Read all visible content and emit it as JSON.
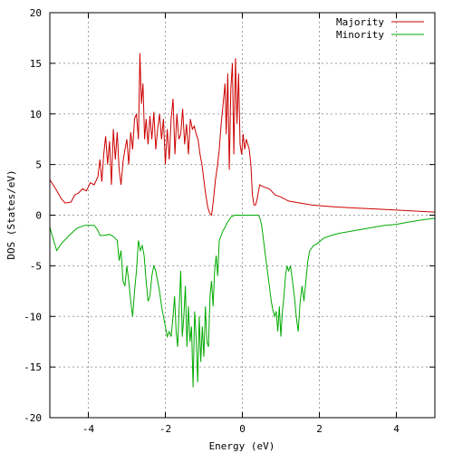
{
  "chart_data": {
    "type": "line",
    "xlabel": "Energy (eV)",
    "ylabel": "DOS (States/eV)",
    "xlim": [
      -5,
      5
    ],
    "ylim": [
      -20,
      20
    ],
    "xticks": [
      -4,
      -2,
      0,
      2,
      4
    ],
    "yticks": [
      -20,
      -15,
      -10,
      -5,
      0,
      5,
      10,
      15,
      20
    ],
    "grid": true,
    "legend_position": "top-right",
    "series": [
      {
        "name": "Majority",
        "color": "#cc0000",
        "points": [
          [
            -5.0,
            3.5
          ],
          [
            -4.85,
            2.6
          ],
          [
            -4.7,
            1.6
          ],
          [
            -4.6,
            1.2
          ],
          [
            -4.45,
            1.3
          ],
          [
            -4.35,
            2.0
          ],
          [
            -4.25,
            2.2
          ],
          [
            -4.15,
            2.6
          ],
          [
            -4.05,
            2.4
          ],
          [
            -3.95,
            3.2
          ],
          [
            -3.85,
            3.0
          ],
          [
            -3.75,
            3.8
          ],
          [
            -3.7,
            5.5
          ],
          [
            -3.65,
            3.3
          ],
          [
            -3.6,
            6.0
          ],
          [
            -3.55,
            7.8
          ],
          [
            -3.5,
            5.0
          ],
          [
            -3.45,
            7.3
          ],
          [
            -3.4,
            3.0
          ],
          [
            -3.35,
            8.5
          ],
          [
            -3.3,
            5.5
          ],
          [
            -3.25,
            8.2
          ],
          [
            -3.2,
            4.5
          ],
          [
            -3.15,
            3.0
          ],
          [
            -3.1,
            5.3
          ],
          [
            -3.05,
            6.5
          ],
          [
            -3.0,
            7.5
          ],
          [
            -2.95,
            5.0
          ],
          [
            -2.9,
            8.2
          ],
          [
            -2.85,
            6.5
          ],
          [
            -2.8,
            9.5
          ],
          [
            -2.75,
            10.0
          ],
          [
            -2.7,
            7.5
          ],
          [
            -2.66,
            16.0
          ],
          [
            -2.62,
            11.0
          ],
          [
            -2.58,
            13.0
          ],
          [
            -2.54,
            7.5
          ],
          [
            -2.5,
            9.5
          ],
          [
            -2.45,
            7.0
          ],
          [
            -2.4,
            9.8
          ],
          [
            -2.35,
            7.5
          ],
          [
            -2.3,
            10.2
          ],
          [
            -2.25,
            6.5
          ],
          [
            -2.2,
            8.5
          ],
          [
            -2.15,
            10.0
          ],
          [
            -2.1,
            7.5
          ],
          [
            -2.05,
            9.5
          ],
          [
            -2.0,
            5.0
          ],
          [
            -1.95,
            8.5
          ],
          [
            -1.9,
            5.5
          ],
          [
            -1.85,
            9.5
          ],
          [
            -1.8,
            11.5
          ],
          [
            -1.75,
            6.0
          ],
          [
            -1.7,
            10.0
          ],
          [
            -1.65,
            7.5
          ],
          [
            -1.6,
            8.0
          ],
          [
            -1.55,
            10.5
          ],
          [
            -1.5,
            7.0
          ],
          [
            -1.45,
            9.0
          ],
          [
            -1.4,
            6.0
          ],
          [
            -1.35,
            9.5
          ],
          [
            -1.3,
            8.5
          ],
          [
            -1.25,
            8.8
          ],
          [
            -1.2,
            8.0
          ],
          [
            -1.15,
            7.5
          ],
          [
            -1.1,
            6.0
          ],
          [
            -1.05,
            5.0
          ],
          [
            -1.0,
            3.5
          ],
          [
            -0.95,
            2.0
          ],
          [
            -0.9,
            0.8
          ],
          [
            -0.85,
            0.2
          ],
          [
            -0.8,
            0.0
          ],
          [
            -0.75,
            1.5
          ],
          [
            -0.7,
            3.5
          ],
          [
            -0.65,
            4.8
          ],
          [
            -0.6,
            6.5
          ],
          [
            -0.55,
            9.0
          ],
          [
            -0.5,
            11.0
          ],
          [
            -0.45,
            13.0
          ],
          [
            -0.42,
            8.0
          ],
          [
            -0.38,
            14.0
          ],
          [
            -0.34,
            4.5
          ],
          [
            -0.3,
            12.5
          ],
          [
            -0.26,
            15.0
          ],
          [
            -0.22,
            6.0
          ],
          [
            -0.18,
            15.5
          ],
          [
            -0.14,
            9.0
          ],
          [
            -0.1,
            14.0
          ],
          [
            -0.06,
            7.0
          ],
          [
            -0.02,
            6.0
          ],
          [
            0.02,
            8.0
          ],
          [
            0.06,
            6.5
          ],
          [
            0.1,
            7.5
          ],
          [
            0.14,
            7.0
          ],
          [
            0.18,
            6.5
          ],
          [
            0.22,
            5.0
          ],
          [
            0.26,
            2.0
          ],
          [
            0.3,
            1.0
          ],
          [
            0.34,
            1.0
          ],
          [
            0.38,
            1.5
          ],
          [
            0.45,
            3.0
          ],
          [
            0.55,
            2.8
          ],
          [
            0.7,
            2.6
          ],
          [
            0.85,
            2.0
          ],
          [
            1.0,
            1.8
          ],
          [
            1.2,
            1.4
          ],
          [
            1.5,
            1.2
          ],
          [
            1.8,
            1.0
          ],
          [
            2.1,
            0.9
          ],
          [
            2.5,
            0.8
          ],
          [
            3.0,
            0.7
          ],
          [
            3.5,
            0.6
          ],
          [
            4.0,
            0.5
          ],
          [
            4.5,
            0.4
          ],
          [
            5.0,
            0.3
          ]
        ]
      },
      {
        "name": "Minority",
        "color": "#00aa00",
        "points": [
          [
            -5.0,
            -1.2
          ],
          [
            -4.9,
            -2.5
          ],
          [
            -4.82,
            -3.5
          ],
          [
            -4.7,
            -2.8
          ],
          [
            -4.5,
            -2.0
          ],
          [
            -4.3,
            -1.3
          ],
          [
            -4.1,
            -1.0
          ],
          [
            -3.85,
            -1.0
          ],
          [
            -3.75,
            -1.5
          ],
          [
            -3.7,
            -2.0
          ],
          [
            -3.6,
            -2.0
          ],
          [
            -3.45,
            -1.9
          ],
          [
            -3.35,
            -2.1
          ],
          [
            -3.25,
            -2.5
          ],
          [
            -3.2,
            -4.5
          ],
          [
            -3.15,
            -3.5
          ],
          [
            -3.1,
            -6.5
          ],
          [
            -3.05,
            -7.0
          ],
          [
            -3.0,
            -5.0
          ],
          [
            -2.95,
            -6.5
          ],
          [
            -2.9,
            -8.5
          ],
          [
            -2.85,
            -10.0
          ],
          [
            -2.8,
            -7.5
          ],
          [
            -2.75,
            -5.5
          ],
          [
            -2.7,
            -2.5
          ],
          [
            -2.65,
            -3.5
          ],
          [
            -2.6,
            -3.0
          ],
          [
            -2.55,
            -4.0
          ],
          [
            -2.5,
            -6.5
          ],
          [
            -2.45,
            -8.5
          ],
          [
            -2.4,
            -8.0
          ],
          [
            -2.35,
            -6.0
          ],
          [
            -2.3,
            -5.0
          ],
          [
            -2.25,
            -5.5
          ],
          [
            -2.2,
            -6.5
          ],
          [
            -2.15,
            -7.5
          ],
          [
            -2.1,
            -9.0
          ],
          [
            -2.05,
            -10.0
          ],
          [
            -2.0,
            -11.0
          ],
          [
            -1.95,
            -12.0
          ],
          [
            -1.9,
            -11.5
          ],
          [
            -1.85,
            -12.0
          ],
          [
            -1.8,
            -10.0
          ],
          [
            -1.76,
            -8.0
          ],
          [
            -1.72,
            -11.5
          ],
          [
            -1.68,
            -13.0
          ],
          [
            -1.64,
            -9.0
          ],
          [
            -1.6,
            -5.5
          ],
          [
            -1.56,
            -12.0
          ],
          [
            -1.52,
            -10.0
          ],
          [
            -1.48,
            -7.0
          ],
          [
            -1.44,
            -13.0
          ],
          [
            -1.4,
            -9.0
          ],
          [
            -1.36,
            -12.5
          ],
          [
            -1.32,
            -11.0
          ],
          [
            -1.28,
            -17.0
          ],
          [
            -1.24,
            -9.5
          ],
          [
            -1.2,
            -12.0
          ],
          [
            -1.16,
            -16.5
          ],
          [
            -1.12,
            -10.0
          ],
          [
            -1.08,
            -14.5
          ],
          [
            -1.04,
            -11.0
          ],
          [
            -1.0,
            -14.0
          ],
          [
            -0.96,
            -9.0
          ],
          [
            -0.92,
            -12.5
          ],
          [
            -0.88,
            -13.0
          ],
          [
            -0.84,
            -8.0
          ],
          [
            -0.8,
            -6.5
          ],
          [
            -0.76,
            -9.0
          ],
          [
            -0.72,
            -5.5
          ],
          [
            -0.68,
            -4.0
          ],
          [
            -0.64,
            -6.0
          ],
          [
            -0.6,
            -2.5
          ],
          [
            -0.55,
            -2.0
          ],
          [
            -0.5,
            -1.5
          ],
          [
            -0.45,
            -1.2
          ],
          [
            -0.4,
            -0.8
          ],
          [
            -0.35,
            -0.5
          ],
          [
            -0.3,
            -0.2
          ],
          [
            -0.25,
            -0.1
          ],
          [
            -0.2,
            0.0
          ],
          [
            0.0,
            0.0
          ],
          [
            0.2,
            0.0
          ],
          [
            0.4,
            0.0
          ],
          [
            0.45,
            -0.2
          ],
          [
            0.5,
            -1.0
          ],
          [
            0.55,
            -2.5
          ],
          [
            0.6,
            -4.0
          ],
          [
            0.65,
            -5.5
          ],
          [
            0.7,
            -7.0
          ],
          [
            0.75,
            -8.5
          ],
          [
            0.8,
            -9.5
          ],
          [
            0.84,
            -10.0
          ],
          [
            0.88,
            -9.5
          ],
          [
            0.92,
            -11.5
          ],
          [
            0.96,
            -9.0
          ],
          [
            1.0,
            -12.0
          ],
          [
            1.04,
            -9.5
          ],
          [
            1.08,
            -8.0
          ],
          [
            1.12,
            -6.0
          ],
          [
            1.16,
            -5.0
          ],
          [
            1.2,
            -5.5
          ],
          [
            1.25,
            -5.0
          ],
          [
            1.3,
            -6.5
          ],
          [
            1.35,
            -8.0
          ],
          [
            1.4,
            -10.0
          ],
          [
            1.45,
            -11.5
          ],
          [
            1.5,
            -8.5
          ],
          [
            1.55,
            -7.0
          ],
          [
            1.6,
            -8.5
          ],
          [
            1.65,
            -6.5
          ],
          [
            1.7,
            -4.5
          ],
          [
            1.75,
            -3.5
          ],
          [
            1.85,
            -3.0
          ],
          [
            1.95,
            -2.8
          ],
          [
            2.1,
            -2.3
          ],
          [
            2.3,
            -2.0
          ],
          [
            2.5,
            -1.8
          ],
          [
            2.8,
            -1.6
          ],
          [
            3.1,
            -1.4
          ],
          [
            3.4,
            -1.2
          ],
          [
            3.7,
            -1.0
          ],
          [
            4.0,
            -0.9
          ],
          [
            4.3,
            -0.7
          ],
          [
            4.6,
            -0.5
          ],
          [
            5.0,
            -0.3
          ]
        ]
      }
    ]
  }
}
